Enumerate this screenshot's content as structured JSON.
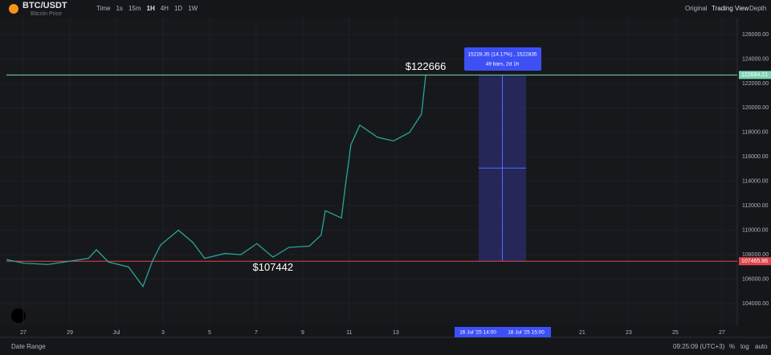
{
  "header": {
    "symbol": "BTC/USDT",
    "subtitle": "Bitcoin Price",
    "intervals": [
      "Time",
      "1s",
      "15m",
      "1H",
      "4H",
      "1D",
      "1W"
    ],
    "views": [
      "Original",
      "Trading View",
      "Depth"
    ]
  },
  "chart_data": {
    "type": "line",
    "color": "#26a69a",
    "x": [
      -0.72,
      0.03,
      1.07,
      2.1,
      2.8,
      3.14,
      3.66,
      4.52,
      5.14,
      5.55,
      5.9,
      6.66,
      7.28,
      7.79,
      8.66,
      9.34,
      10.03,
      10.72,
      11.41,
      12.28,
      12.79,
      12.97,
      13.66,
      13.83,
      14.07,
      14.45,
      15.21,
      15.9,
      16.59,
      17.1,
      17.28
    ],
    "values": [
      107600,
      107300,
      107200,
      107500,
      107700,
      108400,
      107400,
      107000,
      105400,
      107500,
      108800,
      110000,
      109000,
      107700,
      108100,
      108000,
      108900,
      107800,
      108600,
      108700,
      109600,
      111600,
      111000,
      113600,
      117000,
      118600,
      117600,
      117300,
      118000,
      119500,
      122666
    ],
    "xlim": [
      -1,
      30.66
    ],
    "ylim": [
      102227,
      127379
    ],
    "xticks": [
      {
        "value": 0,
        "label": "27"
      },
      {
        "value": 2,
        "label": "29"
      },
      {
        "value": 4,
        "label": "Jul"
      },
      {
        "value": 6,
        "label": "3"
      },
      {
        "value": 8,
        "label": "5"
      },
      {
        "value": 10,
        "label": "7"
      },
      {
        "value": 12,
        "label": "9"
      },
      {
        "value": 14,
        "label": "11"
      },
      {
        "value": 16,
        "label": "13"
      },
      {
        "value": 24,
        "label": "21"
      },
      {
        "value": 26,
        "label": "23"
      },
      {
        "value": 28,
        "label": "25"
      },
      {
        "value": 30,
        "label": "27"
      }
    ],
    "yticks": [
      {
        "value": 104000,
        "label": "104000.00"
      },
      {
        "value": 106000,
        "label": "106000.00"
      },
      {
        "value": 108000,
        "label": "108000.00"
      },
      {
        "value": 110000,
        "label": "110000.00"
      },
      {
        "value": 112000,
        "label": "112000.00"
      },
      {
        "value": 114000,
        "label": "114000.00"
      },
      {
        "value": 116000,
        "label": "116000.00"
      },
      {
        "value": 118000,
        "label": "118000.00"
      },
      {
        "value": 120000,
        "label": "120000.00"
      },
      {
        "value": 122000,
        "label": "122000.00"
      },
      {
        "value": 124000,
        "label": "124000.00"
      },
      {
        "value": 126000,
        "label": "126000.00"
      }
    ],
    "hlines": [
      {
        "value": 122694.21,
        "label": "122694.21",
        "color": "#7fd3b5"
      },
      {
        "value": 107465.86,
        "label": "107465.86",
        "color": "#e0444e"
      }
    ],
    "annotations": [
      {
        "text": "$122666",
        "x": 17.28,
        "y": 122666
      },
      {
        "text": "$107442",
        "x": 10.72,
        "y": 107442
      }
    ],
    "measure": {
      "text": "15228.35 (14.17%) , 1522835",
      "sub": "49 bars, 2d 1h",
      "from": "16 Jul '25 14:00",
      "to": "18 Jul '25 15:00"
    }
  },
  "footer": {
    "range": "Date Range",
    "time": "09:25:09 (UTC+3)",
    "options": [
      "%",
      "log",
      "auto"
    ]
  }
}
